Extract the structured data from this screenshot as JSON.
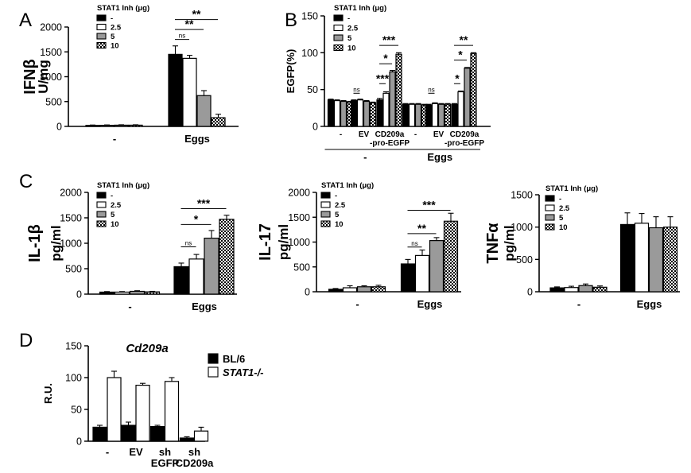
{
  "patterns": {
    "0": "solid-black",
    "1": "white",
    "2": "gray",
    "3": "checkered"
  },
  "colors": {
    "black": "#000000",
    "gray": "#9a9a9a",
    "white": "#ffffff"
  },
  "chart_data": [
    {
      "panel": "A",
      "type": "bar",
      "ylabel": "IFNβ",
      "yunit": "U/mg",
      "ylim": [
        0,
        2000
      ],
      "yticks": [
        0,
        500,
        1000,
        1500,
        2000
      ],
      "legend_title": "STAT1 Inh (μg)",
      "legend": [
        "-",
        "2.5",
        "5",
        "10"
      ],
      "categories": [
        "-",
        "Eggs"
      ],
      "series": [
        {
          "name": "-",
          "values": [
            20,
            1450
          ],
          "errors": [
            8,
            170
          ]
        },
        {
          "name": "2.5",
          "values": [
            22,
            1370
          ],
          "errors": [
            8,
            60
          ]
        },
        {
          "name": "5",
          "values": [
            25,
            620
          ],
          "errors": [
            8,
            100
          ]
        },
        {
          "name": "10",
          "values": [
            25,
            175
          ],
          "errors": [
            8,
            70
          ]
        }
      ],
      "annotations": [
        {
          "text": "**",
          "cat": 1,
          "from": 0,
          "to": 3,
          "level": 2150
        },
        {
          "text": "**",
          "cat": 1,
          "from": 0,
          "to": 2,
          "level": 1950
        },
        {
          "text": "ns",
          "cat": 1,
          "from": 0,
          "to": 1,
          "level": 1750
        }
      ]
    },
    {
      "panel": "B",
      "type": "bar",
      "ylabel": "EGFP(%)",
      "ylim": [
        0,
        150
      ],
      "yticks": [
        0,
        50,
        100,
        150
      ],
      "legend_title": "STAT1 Inh (μg)",
      "legend": [
        "-",
        "2.5",
        "5",
        "10"
      ],
      "categories": [
        "-",
        "EV",
        "CD209a\n-pro-EGFP",
        "-",
        "EV",
        "CD209a\n-pro-EGFP"
      ],
      "groups": [
        {
          "label": "-",
          "span": [
            0,
            2
          ]
        },
        {
          "label": "Eggs",
          "span": [
            3,
            5
          ]
        }
      ],
      "series": [
        {
          "name": "-",
          "values": [
            36,
            35,
            36,
            30,
            29,
            30
          ],
          "errors": [
            1,
            1,
            2,
            1,
            1,
            1
          ]
        },
        {
          "name": "2.5",
          "values": [
            35,
            36,
            45,
            30,
            31,
            47
          ],
          "errors": [
            1,
            1,
            2,
            1,
            1,
            1
          ]
        },
        {
          "name": "5",
          "values": [
            34,
            34,
            74,
            30,
            30,
            79
          ],
          "errors": [
            1,
            1,
            2,
            1,
            1,
            1
          ]
        },
        {
          "name": "10",
          "values": [
            33,
            32,
            98,
            29,
            30,
            99
          ],
          "errors": [
            1,
            1,
            2,
            1,
            1,
            1
          ]
        }
      ],
      "annotations": [
        {
          "text": "***",
          "cat": 2,
          "from": 0,
          "to": 3,
          "level": 110
        },
        {
          "text": "*",
          "cat": 2,
          "from": 0,
          "to": 2,
          "level": 85
        },
        {
          "text": "***",
          "cat": 2,
          "from": 0,
          "to": 1,
          "level": 58
        },
        {
          "text": "ns",
          "cat": 1,
          "from": 0,
          "to": 1,
          "level": 45
        },
        {
          "text": "**",
          "cat": 5,
          "from": 0,
          "to": 3,
          "level": 110
        },
        {
          "text": "*",
          "cat": 5,
          "from": 0,
          "to": 2,
          "level": 90
        },
        {
          "text": "*",
          "cat": 5,
          "from": 0,
          "to": 1,
          "level": 58
        },
        {
          "text": "ns",
          "cat": 4,
          "from": 0,
          "to": 1,
          "level": 45
        }
      ]
    },
    {
      "panel": "C",
      "type": "bar",
      "ylabel": "IL-1β",
      "yunit": "pg/ml",
      "ylim": [
        0,
        2000
      ],
      "yticks": [
        0,
        500,
        1000,
        1500,
        2000
      ],
      "legend_title": "STAT1 Inh (μg)",
      "legend": [
        "-",
        "2.5",
        "5",
        "10"
      ],
      "categories": [
        "-",
        "Eggs"
      ],
      "series": [
        {
          "name": "-",
          "values": [
            40,
            540
          ],
          "errors": [
            10,
            70
          ]
        },
        {
          "name": "2.5",
          "values": [
            40,
            690
          ],
          "errors": [
            10,
            90
          ]
        },
        {
          "name": "5",
          "values": [
            55,
            1100
          ],
          "errors": [
            12,
            150
          ]
        },
        {
          "name": "10",
          "values": [
            45,
            1470
          ],
          "errors": [
            10,
            80
          ]
        }
      ],
      "annotations": [
        {
          "text": "***",
          "cat": 1,
          "from": 0,
          "to": 3,
          "level": 1680
        },
        {
          "text": "*",
          "cat": 1,
          "from": 0,
          "to": 2,
          "level": 1370
        },
        {
          "text": "ns",
          "cat": 1,
          "from": 0,
          "to": 1,
          "level": 930
        }
      ]
    },
    {
      "panel": "C2",
      "type": "bar",
      "ylabel": "IL-17",
      "yunit": "pg/ml",
      "ylim": [
        0,
        2000
      ],
      "yticks": [
        0,
        500,
        1000,
        1500,
        2000
      ],
      "legend_title": "STAT1 Inh (μg)",
      "legend": [
        "-",
        "2.5",
        "5",
        "10"
      ],
      "categories": [
        "-",
        "Eggs"
      ],
      "series": [
        {
          "name": "-",
          "values": [
            50,
            560
          ],
          "errors": [
            15,
            90
          ]
        },
        {
          "name": "2.5",
          "values": [
            80,
            730
          ],
          "errors": [
            40,
            110
          ]
        },
        {
          "name": "5",
          "values": [
            100,
            1030
          ],
          "errors": [
            20,
            60
          ]
        },
        {
          "name": "10",
          "values": [
            100,
            1420
          ],
          "errors": [
            30,
            160
          ]
        }
      ],
      "annotations": [
        {
          "text": "***",
          "cat": 1,
          "from": 0,
          "to": 3,
          "level": 1640
        },
        {
          "text": "**",
          "cat": 1,
          "from": 0,
          "to": 2,
          "level": 1170
        },
        {
          "text": "ns",
          "cat": 1,
          "from": 0,
          "to": 1,
          "level": 900
        }
      ]
    },
    {
      "panel": "C3",
      "type": "bar",
      "ylabel": "TNFα",
      "yunit": "pg/ml",
      "ylim": [
        0,
        1500
      ],
      "yticks": [
        0,
        500,
        1000,
        1500
      ],
      "legend_title": "STAT1 Inh (μg)",
      "legend": [
        "-",
        "2.5",
        "5",
        "10"
      ],
      "categories": [
        "-",
        "Eggs"
      ],
      "series": [
        {
          "name": "-",
          "values": [
            60,
            1040
          ],
          "errors": [
            15,
            180
          ]
        },
        {
          "name": "2.5",
          "values": [
            65,
            1060
          ],
          "errors": [
            20,
            150
          ]
        },
        {
          "name": "5",
          "values": [
            95,
            990
          ],
          "errors": [
            25,
            170
          ]
        },
        {
          "name": "10",
          "values": [
            70,
            1000
          ],
          "errors": [
            20,
            160
          ]
        }
      ],
      "annotations": []
    },
    {
      "panel": "D",
      "type": "bar",
      "ylabel": "R.U.",
      "title": "Cd209a",
      "ylim": [
        0,
        150
      ],
      "yticks": [
        0,
        50,
        100,
        150
      ],
      "legend": [
        "BL/6",
        "STAT1-/-"
      ],
      "categories": [
        "-",
        "EV",
        "sh\nEGFP",
        "sh\nCD209a"
      ],
      "series": [
        {
          "name": "BL/6",
          "values": [
            22,
            25,
            23,
            5
          ],
          "errors": [
            3,
            5,
            2,
            2
          ]
        },
        {
          "name": "STAT1-/-",
          "values": [
            100,
            88,
            94,
            16
          ],
          "errors": [
            10,
            3,
            6,
            6
          ]
        }
      ],
      "annotations": []
    }
  ],
  "panel_letters": [
    "A",
    "B",
    "C",
    "D"
  ]
}
